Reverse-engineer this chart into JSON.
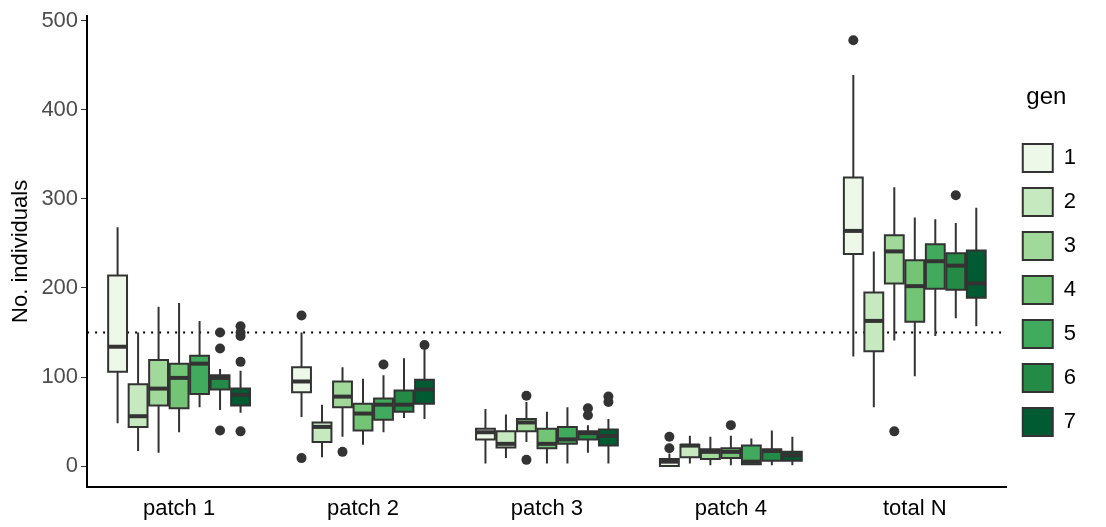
{
  "chart_data": {
    "type": "box",
    "ylabel": "No. individuals",
    "legend_title": "gen",
    "legend": "right",
    "grid": false,
    "categories": [
      "patch 1",
      "patch 2",
      "patch 3",
      "patch 4",
      "total N"
    ],
    "ylim": [
      -23,
      505
    ],
    "yticks": [
      0,
      100,
      200,
      300,
      400,
      500
    ],
    "ref_lines": [
      {
        "axis": "y",
        "value": 150,
        "line_style": "dotted",
        "color": "#000000"
      }
    ],
    "series": [
      {
        "name": "1",
        "color": "#edf8e9",
        "boxes": [
          {
            "low": 48,
            "q1": 106,
            "median": 134,
            "q3": 214,
            "high": 268
          },
          {
            "low": 55,
            "q1": 83,
            "median": 95,
            "q3": 111,
            "high": 150,
            "outliers": [
              169,
              9
            ]
          },
          {
            "low": 3,
            "q1": 30,
            "median": 38,
            "q3": 42,
            "high": 64
          },
          {
            "low": 0,
            "q1": 0,
            "median": 5,
            "q3": 8,
            "high": 14,
            "outliers": [
              33,
              20
            ]
          },
          {
            "low": 123,
            "q1": 238,
            "median": 264,
            "q3": 324,
            "high": 439,
            "outliers": [
              478
            ]
          }
        ]
      },
      {
        "name": "2",
        "color": "#c7e9c0",
        "boxes": [
          {
            "low": 17,
            "q1": 44,
            "median": 56,
            "q3": 92,
            "high": 150
          },
          {
            "low": 10,
            "q1": 27,
            "median": 44,
            "q3": 49,
            "high": 69
          },
          {
            "low": 9,
            "q1": 21,
            "median": 25,
            "q3": 39,
            "high": 58
          },
          {
            "low": 3,
            "q1": 10,
            "median": 23,
            "q3": 24,
            "high": 34
          },
          {
            "low": 66,
            "q1": 129,
            "median": 163,
            "q3": 195,
            "high": 241
          }
        ]
      },
      {
        "name": "3",
        "color": "#a1d99b",
        "boxes": [
          {
            "low": 15,
            "q1": 68,
            "median": 87,
            "q3": 119,
            "high": 179
          },
          {
            "low": 33,
            "q1": 66,
            "median": 78,
            "q3": 95,
            "high": 111,
            "outliers": [
              16
            ]
          },
          {
            "low": 27,
            "q1": 39,
            "median": 49,
            "q3": 53,
            "high": 72,
            "outliers": [
              79,
              7
            ]
          },
          {
            "low": 1,
            "q1": 8,
            "median": 16,
            "q3": 19,
            "high": 33
          },
          {
            "low": 141,
            "q1": 205,
            "median": 241,
            "q3": 259,
            "high": 313,
            "outliers": [
              39
            ]
          }
        ]
      },
      {
        "name": "4",
        "color": "#74c476",
        "boxes": [
          {
            "low": 38,
            "q1": 65,
            "median": 99,
            "q3": 115,
            "high": 183
          },
          {
            "low": 24,
            "q1": 40,
            "median": 59,
            "q3": 70,
            "high": 98
          },
          {
            "low": 3,
            "q1": 20,
            "median": 25,
            "q3": 42,
            "high": 61
          },
          {
            "low": 1,
            "q1": 9,
            "median": 16,
            "q3": 20,
            "high": 34,
            "outliers": [
              46
            ]
          },
          {
            "low": 101,
            "q1": 162,
            "median": 202,
            "q3": 231,
            "high": 279
          }
        ]
      },
      {
        "name": "5",
        "color": "#41ab5d",
        "boxes": [
          {
            "low": 66,
            "q1": 81,
            "median": 115,
            "q3": 124,
            "high": 163
          },
          {
            "low": 38,
            "q1": 52,
            "median": 69,
            "q3": 76,
            "high": 102,
            "outliers": [
              114
            ]
          },
          {
            "low": 3,
            "q1": 25,
            "median": 30,
            "q3": 44,
            "high": 66
          },
          {
            "low": 2,
            "q1": 2,
            "median": 5,
            "q3": 23,
            "high": 31
          },
          {
            "low": 146,
            "q1": 199,
            "median": 230,
            "q3": 249,
            "high": 277
          }
        ]
      },
      {
        "name": "6",
        "color": "#238b45",
        "boxes": [
          {
            "low": 63,
            "q1": 86,
            "median": 99,
            "q3": 102,
            "high": 109,
            "outliers": [
              150,
              132,
              40
            ]
          },
          {
            "low": 54,
            "q1": 61,
            "median": 69,
            "q3": 85,
            "high": 121
          },
          {
            "low": 15,
            "q1": 30,
            "median": 37,
            "q3": 39,
            "high": 46,
            "outliers": [
              65,
              57
            ]
          },
          {
            "low": 1,
            "q1": 6,
            "median": 17,
            "q3": 19,
            "high": 40
          },
          {
            "low": 166,
            "q1": 198,
            "median": 225,
            "q3": 239,
            "high": 273,
            "outliers": [
              304
            ]
          }
        ]
      },
      {
        "name": "7",
        "color": "#005a32",
        "boxes": [
          {
            "low": 60,
            "q1": 68,
            "median": 80,
            "q3": 87,
            "high": 107,
            "outliers": [
              157,
              150,
              146,
              117,
              39
            ]
          },
          {
            "low": 53,
            "q1": 70,
            "median": 86,
            "q3": 97,
            "high": 131,
            "outliers": [
              136
            ]
          },
          {
            "low": 3,
            "q1": 23,
            "median": 34,
            "q3": 41,
            "high": 53,
            "outliers": [
              78,
              72
            ]
          },
          {
            "low": 1,
            "q1": 6,
            "median": 12,
            "q3": 16,
            "high": 33
          },
          {
            "low": 157,
            "q1": 189,
            "median": 205,
            "q3": 242,
            "high": 290
          }
        ]
      }
    ]
  }
}
